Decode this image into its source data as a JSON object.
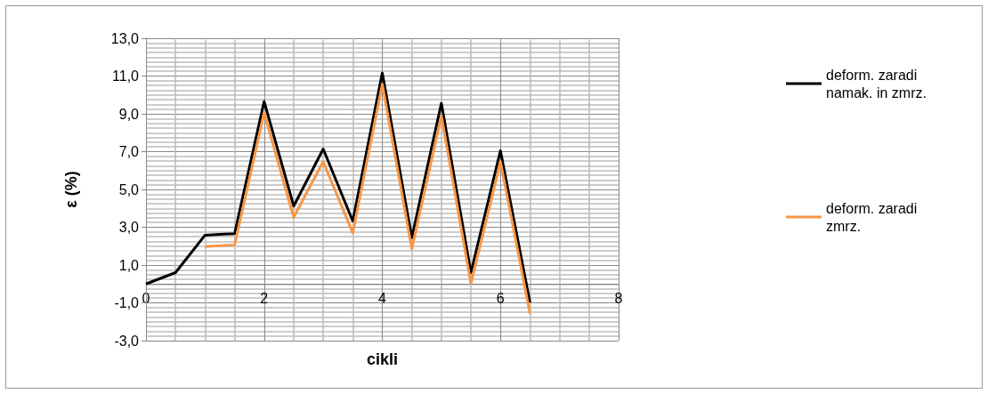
{
  "chart_data": {
    "type": "line",
    "xlabel": "cikli",
    "ylabel": "ε (%)",
    "x": [
      0,
      0.5,
      1,
      1.5,
      2,
      2.5,
      3,
      3.5,
      4,
      4.5,
      5,
      5.5,
      6,
      6.5
    ],
    "series": [
      {
        "name": "deform. zaradi namak. in zmrz.",
        "color": "#000000",
        "values": [
          0,
          0.6,
          2.58,
          2.66,
          9.65,
          4.12,
          7.14,
          3.33,
          11.16,
          2.45,
          9.56,
          0.6,
          7.05,
          -0.99
        ]
      },
      {
        "name": "deform. zaradi zmrz.",
        "color": "#f79646",
        "values": [
          null,
          null,
          1.98,
          2.06,
          9.06,
          3.53,
          6.47,
          2.7,
          10.57,
          1.86,
          8.9,
          0.02,
          6.47,
          -1.57
        ]
      }
    ],
    "xlim": [
      0,
      8
    ],
    "xticks": [
      0,
      2,
      4,
      6,
      8
    ],
    "ylim": [
      -3,
      13
    ],
    "yticks": [
      {
        "value": -3,
        "label": "-3,0"
      },
      {
        "value": -1,
        "label": "-1,0"
      },
      {
        "value": 1,
        "label": "1,0"
      },
      {
        "value": 3,
        "label": "3,0"
      },
      {
        "value": 5,
        "label": "5,0"
      },
      {
        "value": 7,
        "label": "7,0"
      },
      {
        "value": 9,
        "label": "9,0"
      },
      {
        "value": 11,
        "label": "11,0"
      },
      {
        "value": 13,
        "label": "13,0"
      }
    ],
    "grid": true,
    "legend": "right",
    "marker": "none",
    "line_style": "solid"
  }
}
